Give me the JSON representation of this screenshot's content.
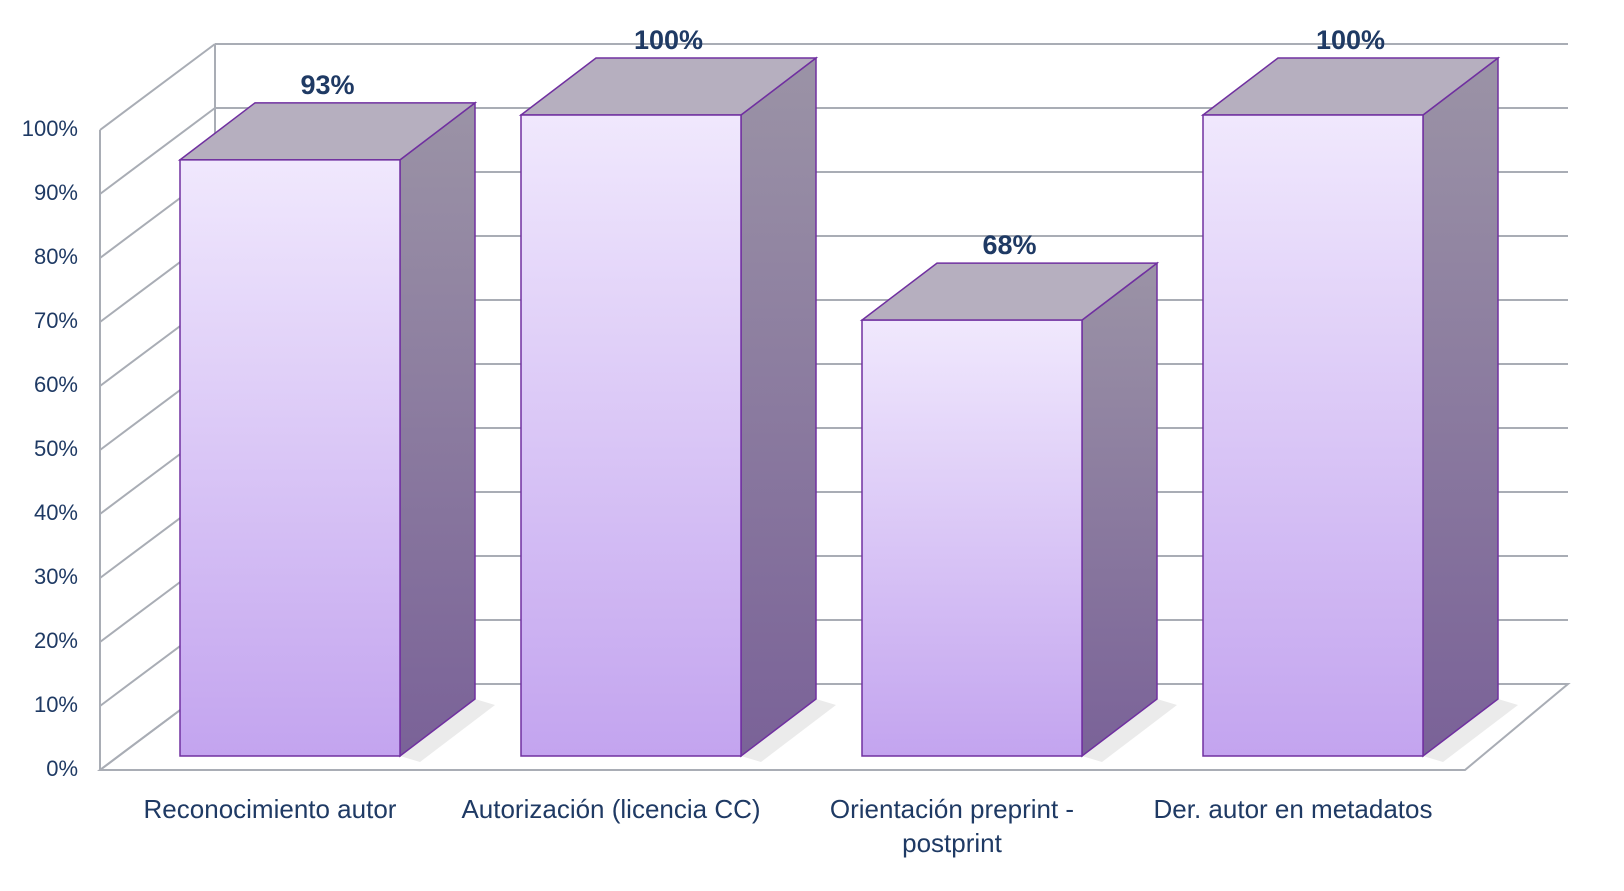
{
  "chart_data": {
    "type": "bar3d",
    "categories": [
      "Reconocimiento autor",
      "Autorización (licencia CC)",
      "Orientación preprint - postprint",
      "Der. autor en metadatos"
    ],
    "values": [
      93,
      100,
      68,
      100
    ],
    "value_labels": [
      "93%",
      "100%",
      "68%",
      "100%"
    ],
    "color": "#c3a4ef",
    "ylim": [
      0,
      100
    ],
    "yticks": [
      {
        "value": 0,
        "label": "0%"
      },
      {
        "value": 10,
        "label": "10%"
      },
      {
        "value": 20,
        "label": "20%"
      },
      {
        "value": 30,
        "label": "30%"
      },
      {
        "value": 40,
        "label": "40%"
      },
      {
        "value": 50,
        "label": "50%"
      },
      {
        "value": 60,
        "label": "60%"
      },
      {
        "value": 70,
        "label": "70%"
      },
      {
        "value": 80,
        "label": "80%"
      },
      {
        "value": 90,
        "label": "90%"
      },
      {
        "value": 100,
        "label": "100%"
      }
    ],
    "grid": true
  }
}
